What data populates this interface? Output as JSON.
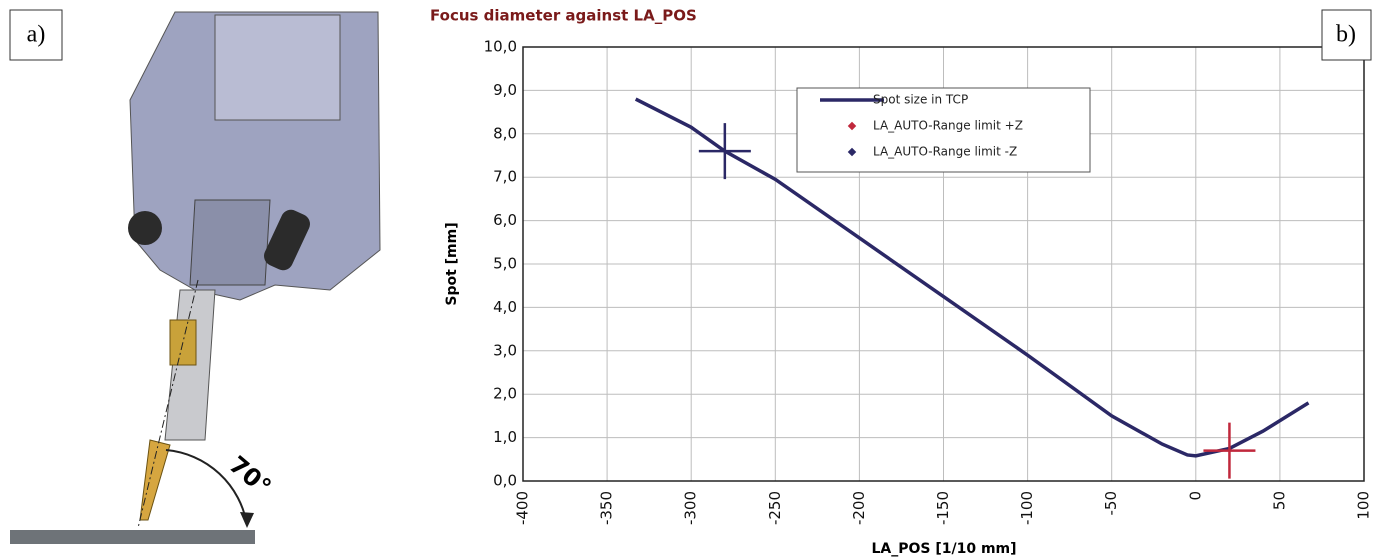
{
  "panel_labels": [
    "a)",
    "b)"
  ],
  "drawing": {
    "angle_label": "70°"
  },
  "chart_data": {
    "type": "line",
    "title": "Focus diameter against LA_POS",
    "x_label": "LA_POS [1/10 mm]",
    "y_label": "Spot [mm]",
    "xlim": [
      -400,
      100
    ],
    "xticks": [
      -400,
      -350,
      -300,
      -250,
      -200,
      -150,
      -100,
      -50,
      0,
      50,
      100
    ],
    "ylim": [
      0,
      10
    ],
    "yticks": [
      {
        "value": 0,
        "label": "0,0"
      },
      {
        "value": 1,
        "label": "1,0"
      },
      {
        "value": 2,
        "label": "2,0"
      },
      {
        "value": 3,
        "label": "3,0"
      },
      {
        "value": 4,
        "label": "4,0"
      },
      {
        "value": 5,
        "label": "5,0"
      },
      {
        "value": 6,
        "label": "6,0"
      },
      {
        "value": 7,
        "label": "7,0"
      },
      {
        "value": 8,
        "label": "8,0"
      },
      {
        "value": 9,
        "label": "9,0"
      },
      {
        "value": 10,
        "label": "10,0"
      }
    ],
    "grid": true,
    "series": [
      {
        "name": "Spot size in TCP",
        "color": "#2b2866",
        "mode": "line",
        "x": [
          -333,
          -300,
          -280,
          -250,
          -200,
          -150,
          -100,
          -50,
          -20,
          -5,
          0,
          20,
          40,
          67
        ],
        "values": [
          8.8,
          8.15,
          7.6,
          6.95,
          5.6,
          4.25,
          2.9,
          1.5,
          0.85,
          0.6,
          0.58,
          0.75,
          1.15,
          1.8
        ]
      },
      {
        "name": "LA_AUTO-Range limit +Z",
        "color": "#c0283c",
        "mode": "marker",
        "x": [
          20
        ],
        "values": [
          0.7
        ]
      },
      {
        "name": "LA_AUTO-Range limit -Z",
        "color": "#2b2866",
        "mode": "marker",
        "x": [
          -280
        ],
        "values": [
          7.6
        ]
      }
    ]
  }
}
